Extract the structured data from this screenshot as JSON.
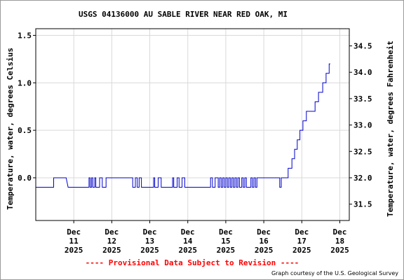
{
  "chart_data": {
    "type": "line",
    "title": "USGS 04136000 AU SABLE RIVER NEAR RED OAK, MI",
    "ylabel": "Temperature, water, degrees Celsius",
    "y2label": "Temperature, water, degrees Fahrenheit",
    "ylim": [
      -0.45,
      1.57
    ],
    "y2lim": [
      31.19,
      34.826
    ],
    "y_ticks": [
      {
        "value": 0.0,
        "label": "0.0"
      },
      {
        "value": 0.5,
        "label": "0.5"
      },
      {
        "value": 1.0,
        "label": "1.0"
      },
      {
        "value": 1.5,
        "label": "1.5"
      }
    ],
    "y2_ticks": [
      {
        "value": 31.5,
        "label": "31.5"
      },
      {
        "value": 32.0,
        "label": "32.0"
      },
      {
        "value": 32.5,
        "label": "32.5"
      },
      {
        "value": 33.0,
        "label": "33.0"
      },
      {
        "value": 33.5,
        "label": "33.5"
      },
      {
        "value": 34.0,
        "label": "34.0"
      },
      {
        "value": 34.5,
        "label": "34.5"
      }
    ],
    "xlim": [
      0,
      8.25
    ],
    "x_ticks": [
      {
        "value": 1,
        "month": "Dec",
        "day": "11",
        "year": "2025"
      },
      {
        "value": 2,
        "month": "Dec",
        "day": "12",
        "year": "2025"
      },
      {
        "value": 3,
        "month": "Dec",
        "day": "13",
        "year": "2025"
      },
      {
        "value": 4,
        "month": "Dec",
        "day": "14",
        "year": "2025"
      },
      {
        "value": 5,
        "month": "Dec",
        "day": "15",
        "year": "2025"
      },
      {
        "value": 6,
        "month": "Dec",
        "day": "16",
        "year": "2025"
      },
      {
        "value": 7,
        "month": "Dec",
        "day": "17",
        "year": "2025"
      },
      {
        "value": 8,
        "month": "Dec",
        "day": "18",
        "year": "2025"
      }
    ],
    "grid": true,
    "series": [
      {
        "color": "#0000cc",
        "points": [
          [
            0.0,
            -0.1
          ],
          [
            0.47,
            -0.1
          ],
          [
            0.47,
            0.0
          ],
          [
            0.8,
            0.0
          ],
          [
            0.85,
            -0.1
          ],
          [
            1.4,
            -0.1
          ],
          [
            1.4,
            0.0
          ],
          [
            1.43,
            0.0
          ],
          [
            1.43,
            -0.1
          ],
          [
            1.47,
            -0.1
          ],
          [
            1.47,
            0.0
          ],
          [
            1.5,
            0.0
          ],
          [
            1.5,
            -0.1
          ],
          [
            1.55,
            -0.1
          ],
          [
            1.55,
            0.0
          ],
          [
            1.58,
            0.0
          ],
          [
            1.58,
            -0.1
          ],
          [
            1.68,
            -0.1
          ],
          [
            1.68,
            0.0
          ],
          [
            1.75,
            0.0
          ],
          [
            1.75,
            -0.1
          ],
          [
            1.85,
            -0.1
          ],
          [
            1.85,
            0.0
          ],
          [
            2.55,
            0.0
          ],
          [
            2.55,
            -0.1
          ],
          [
            2.62,
            -0.1
          ],
          [
            2.62,
            0.0
          ],
          [
            2.67,
            0.0
          ],
          [
            2.67,
            -0.1
          ],
          [
            2.72,
            -0.1
          ],
          [
            2.72,
            0.0
          ],
          [
            2.78,
            0.0
          ],
          [
            2.78,
            -0.1
          ],
          [
            3.1,
            -0.1
          ],
          [
            3.1,
            0.0
          ],
          [
            3.13,
            0.0
          ],
          [
            3.13,
            -0.1
          ],
          [
            3.22,
            -0.1
          ],
          [
            3.22,
            0.0
          ],
          [
            3.3,
            0.0
          ],
          [
            3.3,
            -0.1
          ],
          [
            3.6,
            -0.1
          ],
          [
            3.6,
            0.0
          ],
          [
            3.63,
            0.0
          ],
          [
            3.63,
            -0.1
          ],
          [
            3.72,
            -0.1
          ],
          [
            3.72,
            0.0
          ],
          [
            3.77,
            0.0
          ],
          [
            3.77,
            -0.1
          ],
          [
            3.85,
            -0.1
          ],
          [
            3.85,
            0.0
          ],
          [
            3.92,
            0.0
          ],
          [
            3.92,
            -0.1
          ],
          [
            4.6,
            -0.1
          ],
          [
            4.6,
            0.0
          ],
          [
            4.65,
            0.0
          ],
          [
            4.65,
            -0.1
          ],
          [
            4.72,
            -0.1
          ],
          [
            4.72,
            0.0
          ],
          [
            4.8,
            0.0
          ],
          [
            4.8,
            -0.1
          ],
          [
            4.84,
            -0.1
          ],
          [
            4.84,
            0.0
          ],
          [
            4.88,
            0.0
          ],
          [
            4.88,
            -0.1
          ],
          [
            4.92,
            -0.1
          ],
          [
            4.92,
            0.0
          ],
          [
            4.96,
            0.0
          ],
          [
            4.96,
            -0.1
          ],
          [
            5.0,
            -0.1
          ],
          [
            5.0,
            0.0
          ],
          [
            5.04,
            0.0
          ],
          [
            5.04,
            -0.1
          ],
          [
            5.08,
            -0.1
          ],
          [
            5.08,
            0.0
          ],
          [
            5.12,
            0.0
          ],
          [
            5.12,
            -0.1
          ],
          [
            5.16,
            -0.1
          ],
          [
            5.16,
            0.0
          ],
          [
            5.2,
            0.0
          ],
          [
            5.2,
            -0.1
          ],
          [
            5.24,
            -0.1
          ],
          [
            5.24,
            0.0
          ],
          [
            5.28,
            0.0
          ],
          [
            5.28,
            -0.1
          ],
          [
            5.32,
            -0.1
          ],
          [
            5.32,
            0.0
          ],
          [
            5.36,
            0.0
          ],
          [
            5.36,
            -0.1
          ],
          [
            5.42,
            -0.1
          ],
          [
            5.42,
            0.0
          ],
          [
            5.46,
            0.0
          ],
          [
            5.46,
            -0.1
          ],
          [
            5.5,
            -0.1
          ],
          [
            5.5,
            0.0
          ],
          [
            5.54,
            0.0
          ],
          [
            5.54,
            -0.1
          ],
          [
            5.66,
            -0.1
          ],
          [
            5.66,
            0.0
          ],
          [
            5.7,
            0.0
          ],
          [
            5.7,
            -0.1
          ],
          [
            5.74,
            -0.1
          ],
          [
            5.74,
            0.0
          ],
          [
            5.78,
            0.0
          ],
          [
            5.78,
            -0.1
          ],
          [
            5.82,
            -0.1
          ],
          [
            5.82,
            0.0
          ],
          [
            6.42,
            0.0
          ],
          [
            6.42,
            -0.1
          ],
          [
            6.46,
            -0.1
          ],
          [
            6.46,
            0.0
          ],
          [
            6.64,
            0.0
          ],
          [
            6.64,
            0.1
          ],
          [
            6.74,
            0.1
          ],
          [
            6.74,
            0.2
          ],
          [
            6.81,
            0.2
          ],
          [
            6.81,
            0.3
          ],
          [
            6.88,
            0.3
          ],
          [
            6.88,
            0.4
          ],
          [
            6.95,
            0.4
          ],
          [
            6.95,
            0.5
          ],
          [
            7.03,
            0.5
          ],
          [
            7.03,
            0.6
          ],
          [
            7.12,
            0.6
          ],
          [
            7.12,
            0.7
          ],
          [
            7.35,
            0.7
          ],
          [
            7.35,
            0.8
          ],
          [
            7.44,
            0.8
          ],
          [
            7.44,
            0.9
          ],
          [
            7.55,
            0.9
          ],
          [
            7.55,
            1.0
          ],
          [
            7.64,
            1.0
          ],
          [
            7.64,
            1.1
          ],
          [
            7.72,
            1.1
          ],
          [
            7.72,
            1.2
          ],
          [
            7.75,
            1.2
          ]
        ]
      }
    ],
    "annotations": {
      "provisional": "---- Provisional Data Subject to Revision ----",
      "credit": "Graph courtesy of the U.S. Geological Survey"
    }
  }
}
